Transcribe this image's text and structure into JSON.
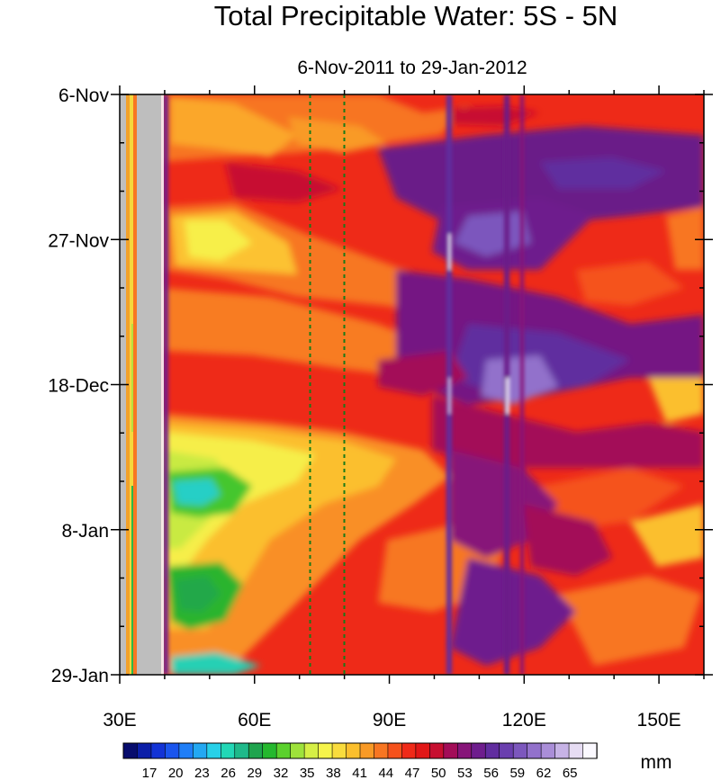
{
  "chart_data": {
    "type": "heatmap",
    "title": "Total Precipitable Water: 5S - 5N",
    "subtitle": "6-Nov-2011 to 29-Jan-2012",
    "x_axis": {
      "range": [
        30,
        160
      ],
      "ticks": [
        30,
        60,
        90,
        120,
        150
      ],
      "tick_labels": [
        "30E",
        "60E",
        "90E",
        "120E",
        "150E"
      ]
    },
    "y_axis": {
      "range_days_since_6nov": [
        0,
        84
      ],
      "ticks": [
        0,
        21,
        42,
        63,
        84
      ],
      "tick_labels": [
        "6-Nov",
        "27-Nov",
        "18-Dec",
        "8-Jan",
        "29-Jan"
      ],
      "inverted": true
    },
    "colorbar": {
      "unit": "mm",
      "labels": [
        "17",
        "20",
        "23",
        "26",
        "29",
        "32",
        "35",
        "38",
        "41",
        "44",
        "47",
        "50",
        "53",
        "56",
        "59",
        "62",
        "65"
      ],
      "colors": [
        "#070c6d",
        "#0b1ea8",
        "#1233d6",
        "#1a55ee",
        "#1f7ef7",
        "#23a8f2",
        "#27d0e8",
        "#22d7b6",
        "#1fb98a",
        "#1fa44e",
        "#25b82e",
        "#5bd12d",
        "#9ee23b",
        "#d6ef45",
        "#f6f44a",
        "#f9dc3d",
        "#fbbf2d",
        "#f99a26",
        "#f87622",
        "#f5521c",
        "#f02a18",
        "#e11717",
        "#c70f30",
        "#a30d58",
        "#871579",
        "#6e1d8d",
        "#612d9f",
        "#6a3fae",
        "#7c57bd",
        "#9271cb",
        "#aa8ed8",
        "#c7b3e6",
        "#e6dcf3",
        "#fbf9ff"
      ]
    },
    "land_mask_gray_longitudes": [
      [
        30,
        31.3
      ],
      [
        34.2,
        39
      ]
    ],
    "reference_dashed_lines_longitude": [
      72.5,
      80.2
    ],
    "field_description_values_mm": {
      "west_of_40E_land_strip": "masked",
      "40-75E_december_january": [
        35,
        47
      ],
      "40-75E_november": [
        47,
        56
      ],
      "90-100E": [
        56,
        62
      ],
      "110-130E_december": [
        59,
        65
      ],
      "150-160E": [
        47,
        59
      ]
    }
  }
}
